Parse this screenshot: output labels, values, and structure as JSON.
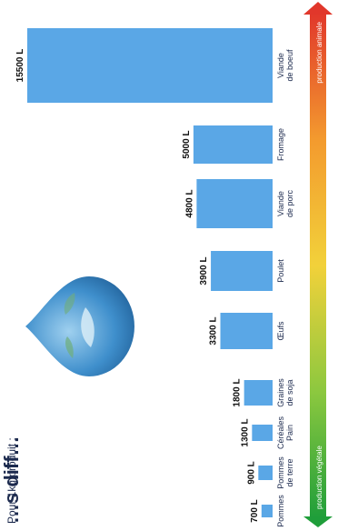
{
  "title": "…s diff…",
  "subtitle": "Pour 1kg produit :",
  "chart_data": {
    "type": "bar",
    "categories": [
      "Pommes",
      "Pommes de terre",
      "Céréales Pain",
      "Graines de soja",
      "Œufs",
      "Poulet",
      "Viande de porc",
      "Fromage",
      "Viande de boeuf"
    ],
    "category_lines": [
      [
        "Pommes"
      ],
      [
        "Pommes",
        "de terre"
      ],
      [
        "Céréales",
        "Pain"
      ],
      [
        "Graines",
        "de soja"
      ],
      [
        "Œufs"
      ],
      [
        "Poulet"
      ],
      [
        "Viande",
        "de porc"
      ],
      [
        "Fromage"
      ],
      [
        "Viande",
        "de boeuf"
      ]
    ],
    "values": [
      700,
      900,
      1300,
      1800,
      3300,
      3900,
      4800,
      5000,
      15500
    ],
    "value_labels": [
      "700 L",
      "900 L",
      "1300 L",
      "1800 L",
      "3300 L",
      "3900 L",
      "4800 L",
      "5000 L",
      "15500 L"
    ],
    "unit": "L",
    "bar_color": "#5aa7e6",
    "arrow": {
      "start_label": "production végétale",
      "end_label": "production animale",
      "gradient": [
        "#1f9e3a",
        "#8cc83f",
        "#f2d13a",
        "#f39a2e",
        "#e1372b"
      ]
    }
  }
}
